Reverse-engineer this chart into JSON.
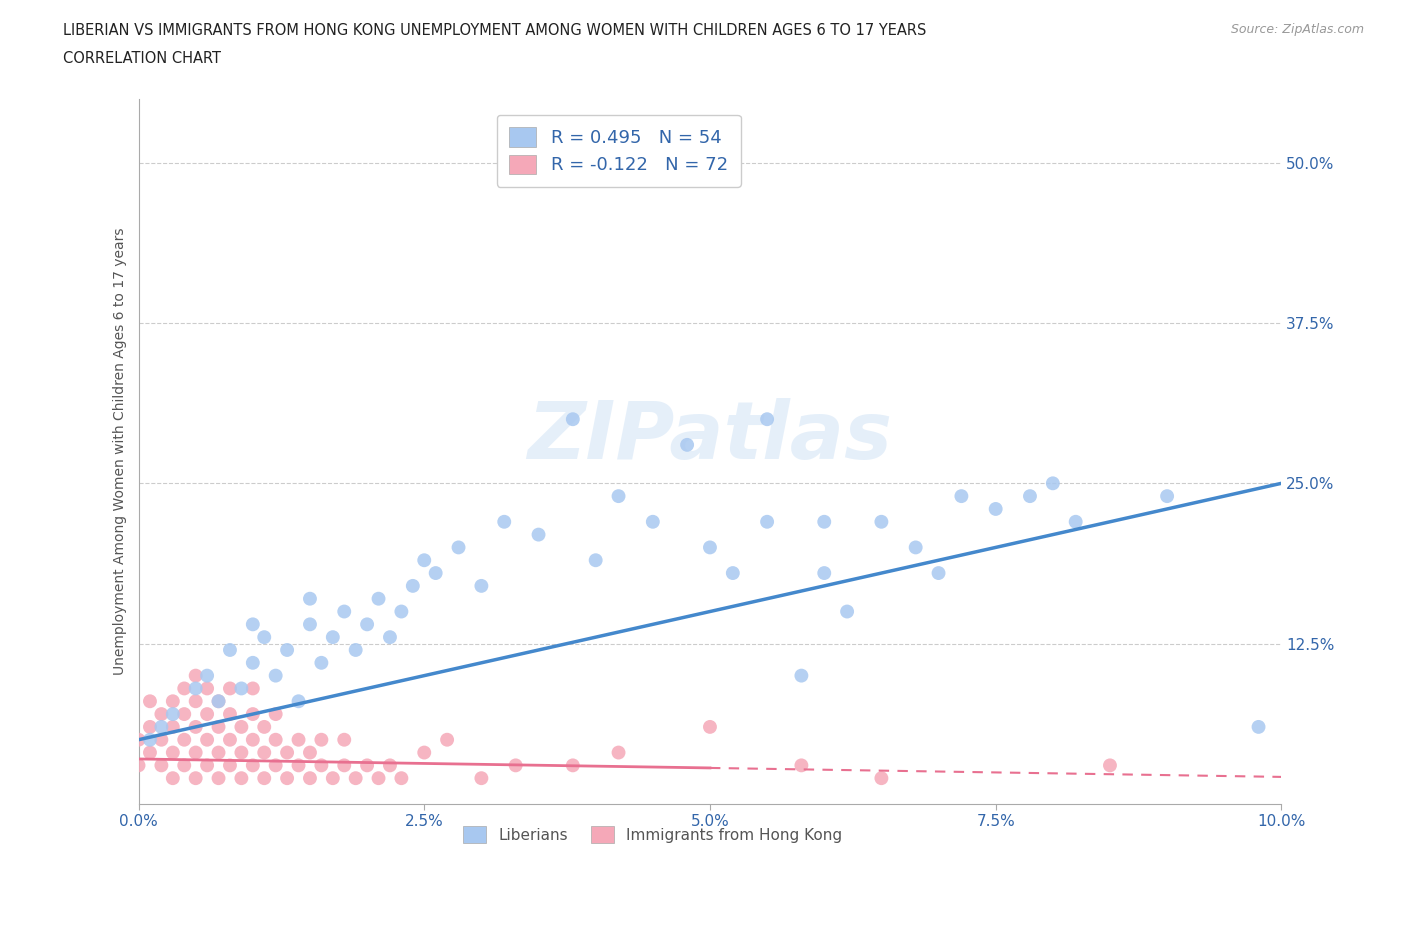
{
  "title_line1": "LIBERIAN VS IMMIGRANTS FROM HONG KONG UNEMPLOYMENT AMONG WOMEN WITH CHILDREN AGES 6 TO 17 YEARS",
  "title_line2": "CORRELATION CHART",
  "source_text": "Source: ZipAtlas.com",
  "ylabel": "Unemployment Among Women with Children Ages 6 to 17 years",
  "xlim": [
    0.0,
    0.1
  ],
  "ylim": [
    0.0,
    0.55
  ],
  "xtick_labels": [
    "0.0%",
    "2.5%",
    "5.0%",
    "7.5%",
    "10.0%"
  ],
  "xtick_vals": [
    0.0,
    0.025,
    0.05,
    0.075,
    0.1
  ],
  "ytick_labels": [
    "12.5%",
    "25.0%",
    "37.5%",
    "50.0%"
  ],
  "ytick_vals": [
    0.125,
    0.25,
    0.375,
    0.5
  ],
  "grid_color": "#cccccc",
  "background_color": "#ffffff",
  "liberian_color": "#a8c8f0",
  "hk_color": "#f5a8b8",
  "liberian_line_color": "#4488cc",
  "hk_line_color": "#e87090",
  "R_liberian": 0.495,
  "N_liberian": 54,
  "R_hk": -0.122,
  "N_hk": 72,
  "watermark": "ZIPatlas",
  "legend_label_liberian": "Liberians",
  "legend_label_hk": "Immigrants from Hong Kong",
  "liberian_x": [
    0.001,
    0.002,
    0.003,
    0.005,
    0.006,
    0.007,
    0.008,
    0.009,
    0.01,
    0.01,
    0.011,
    0.012,
    0.013,
    0.014,
    0.015,
    0.015,
    0.016,
    0.017,
    0.018,
    0.019,
    0.02,
    0.021,
    0.022,
    0.023,
    0.024,
    0.025,
    0.026,
    0.028,
    0.03,
    0.032,
    0.035,
    0.038,
    0.04,
    0.042,
    0.045,
    0.048,
    0.05,
    0.052,
    0.055,
    0.058,
    0.06,
    0.062,
    0.065,
    0.068,
    0.07,
    0.072,
    0.075,
    0.078,
    0.08,
    0.082,
    0.055,
    0.06,
    0.09,
    0.098
  ],
  "liberian_y": [
    0.05,
    0.06,
    0.07,
    0.09,
    0.1,
    0.08,
    0.12,
    0.09,
    0.11,
    0.14,
    0.13,
    0.1,
    0.12,
    0.08,
    0.14,
    0.16,
    0.11,
    0.13,
    0.15,
    0.12,
    0.14,
    0.16,
    0.13,
    0.15,
    0.17,
    0.19,
    0.18,
    0.2,
    0.17,
    0.22,
    0.21,
    0.3,
    0.19,
    0.24,
    0.22,
    0.28,
    0.2,
    0.18,
    0.22,
    0.1,
    0.18,
    0.15,
    0.22,
    0.2,
    0.18,
    0.24,
    0.23,
    0.24,
    0.25,
    0.22,
    0.3,
    0.22,
    0.24,
    0.06
  ],
  "hk_x": [
    0.0,
    0.0,
    0.001,
    0.001,
    0.001,
    0.002,
    0.002,
    0.002,
    0.003,
    0.003,
    0.003,
    0.003,
    0.004,
    0.004,
    0.004,
    0.004,
    0.005,
    0.005,
    0.005,
    0.005,
    0.005,
    0.006,
    0.006,
    0.006,
    0.006,
    0.007,
    0.007,
    0.007,
    0.007,
    0.008,
    0.008,
    0.008,
    0.008,
    0.009,
    0.009,
    0.009,
    0.01,
    0.01,
    0.01,
    0.01,
    0.011,
    0.011,
    0.011,
    0.012,
    0.012,
    0.012,
    0.013,
    0.013,
    0.014,
    0.014,
    0.015,
    0.015,
    0.016,
    0.016,
    0.017,
    0.018,
    0.018,
    0.019,
    0.02,
    0.021,
    0.022,
    0.023,
    0.025,
    0.027,
    0.03,
    0.033,
    0.038,
    0.042,
    0.05,
    0.058,
    0.065,
    0.085
  ],
  "hk_y": [
    0.03,
    0.05,
    0.04,
    0.06,
    0.08,
    0.03,
    0.05,
    0.07,
    0.02,
    0.04,
    0.06,
    0.08,
    0.03,
    0.05,
    0.07,
    0.09,
    0.02,
    0.04,
    0.06,
    0.08,
    0.1,
    0.03,
    0.05,
    0.07,
    0.09,
    0.02,
    0.04,
    0.06,
    0.08,
    0.03,
    0.05,
    0.07,
    0.09,
    0.02,
    0.04,
    0.06,
    0.03,
    0.05,
    0.07,
    0.09,
    0.02,
    0.04,
    0.06,
    0.03,
    0.05,
    0.07,
    0.02,
    0.04,
    0.03,
    0.05,
    0.02,
    0.04,
    0.03,
    0.05,
    0.02,
    0.03,
    0.05,
    0.02,
    0.03,
    0.02,
    0.03,
    0.02,
    0.04,
    0.05,
    0.02,
    0.03,
    0.03,
    0.04,
    0.06,
    0.03,
    0.02,
    0.03
  ]
}
